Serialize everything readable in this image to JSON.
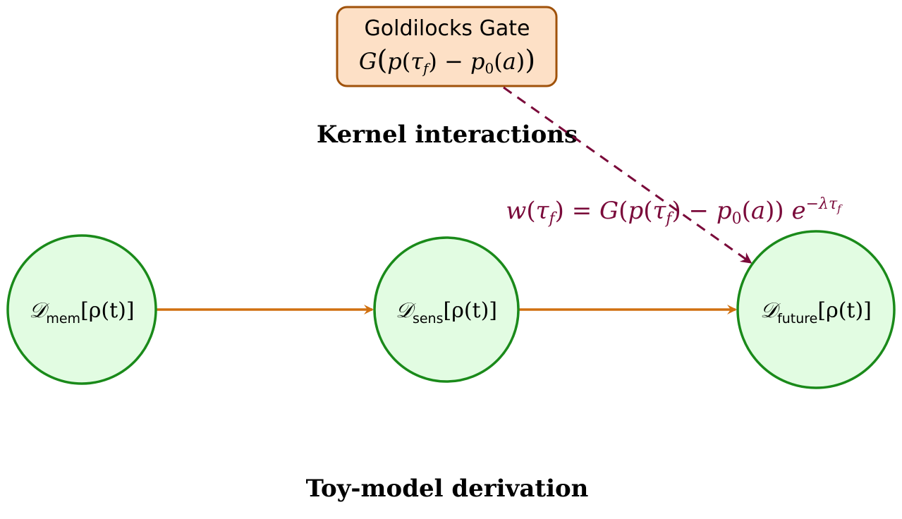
{
  "titles": {
    "kernel": "Kernel interactions",
    "toy": "Toy-model derivation"
  },
  "gate": {
    "label": "Goldilocks Gate",
    "formula": "G(p(τ_f) − p_0(a))"
  },
  "weight_formula": "w(τ_f) = G(p(τ_f) − p_0(a)) e^{−λτ_f}",
  "nodes": [
    {
      "id": "mem",
      "symbol": "𝒟",
      "subscript": "mem",
      "arg": "[ρ(t)]"
    },
    {
      "id": "sens",
      "symbol": "𝒟",
      "subscript": "sens",
      "arg": "[ρ(t)]"
    },
    {
      "id": "future",
      "symbol": "𝒟",
      "subscript": "future",
      "arg": "[ρ(t)]"
    }
  ],
  "colors": {
    "node_fill": "#e2fce2",
    "node_stroke": "#1a8a1a",
    "arrow": "#d07010",
    "gate_fill": "#fde0c6",
    "gate_stroke": "#a0520a",
    "weight": "#7a0a3a"
  }
}
